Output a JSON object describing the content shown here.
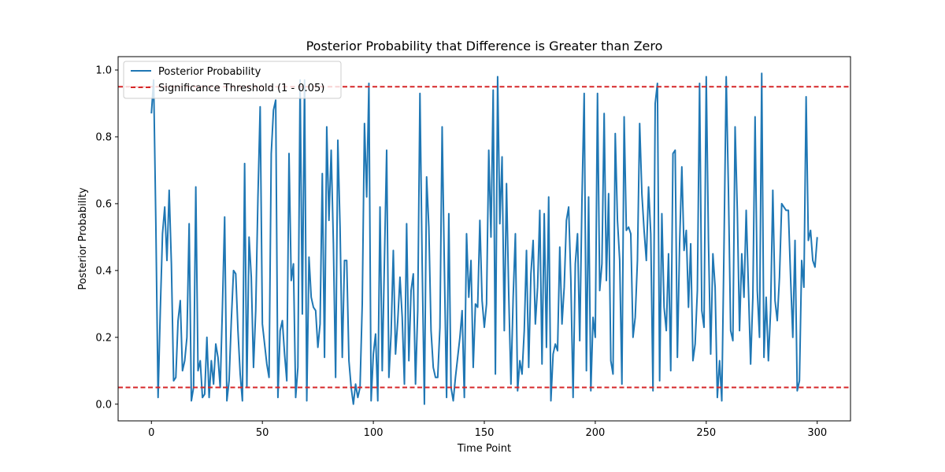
{
  "chart_data": {
    "type": "line",
    "title": "Posterior Probability that Difference is Greater than Zero",
    "xlabel": "Time Point",
    "ylabel": "Posterior Probability",
    "xlim": [
      -15,
      315
    ],
    "ylim": [
      -0.05,
      1.04
    ],
    "xticks": [
      0,
      50,
      100,
      150,
      200,
      250,
      300
    ],
    "yticks": [
      0.0,
      0.2,
      0.4,
      0.6,
      0.8,
      1.0
    ],
    "xtick_labels": [
      "0",
      "50",
      "100",
      "150",
      "200",
      "250",
      "300"
    ],
    "ytick_labels": [
      "0.0",
      "0.2",
      "0.4",
      "0.6",
      "0.8",
      "1.0"
    ],
    "grid": false,
    "legend_position": "top-left",
    "series": [
      {
        "name": "Posterior Probability",
        "color": "#1f77b4",
        "values": [
          0.87,
          0.97,
          0.54,
          0.02,
          0.28,
          0.51,
          0.59,
          0.43,
          0.64,
          0.42,
          0.07,
          0.08,
          0.25,
          0.31,
          0.1,
          0.13,
          0.2,
          0.54,
          0.01,
          0.05,
          0.65,
          0.1,
          0.13,
          0.02,
          0.03,
          0.2,
          0.02,
          0.13,
          0.06,
          0.18,
          0.14,
          0.05,
          0.29,
          0.56,
          0.01,
          0.07,
          0.25,
          0.4,
          0.39,
          0.22,
          0.09,
          0.01,
          0.72,
          0.05,
          0.5,
          0.38,
          0.11,
          0.28,
          0.62,
          0.89,
          0.24,
          0.18,
          0.12,
          0.08,
          0.75,
          0.88,
          0.91,
          0.02,
          0.22,
          0.25,
          0.15,
          0.07,
          0.75,
          0.37,
          0.42,
          0.02,
          0.11,
          0.97,
          0.27,
          0.97,
          0.01,
          0.44,
          0.32,
          0.29,
          0.28,
          0.17,
          0.24,
          0.69,
          0.14,
          0.83,
          0.55,
          0.76,
          0.48,
          0.08,
          0.79,
          0.53,
          0.14,
          0.43,
          0.43,
          0.13,
          0.05,
          0.0,
          0.06,
          0.02,
          0.05,
          0.3,
          0.84,
          0.62,
          0.96,
          0.01,
          0.15,
          0.21,
          0.01,
          0.59,
          0.1,
          0.43,
          0.76,
          0.08,
          0.21,
          0.46,
          0.15,
          0.25,
          0.38,
          0.26,
          0.06,
          0.54,
          0.13,
          0.34,
          0.39,
          0.06,
          0.28,
          0.93,
          0.42,
          0.0,
          0.68,
          0.53,
          0.22,
          0.11,
          0.08,
          0.08,
          0.23,
          0.83,
          0.41,
          0.02,
          0.57,
          0.05,
          0.01,
          0.08,
          0.14,
          0.2,
          0.28,
          0.02,
          0.51,
          0.32,
          0.43,
          0.11,
          0.3,
          0.29,
          0.55,
          0.31,
          0.23,
          0.3,
          0.76,
          0.5,
          0.94,
          0.09,
          0.98,
          0.54,
          0.74,
          0.22,
          0.66,
          0.33,
          0.06,
          0.32,
          0.51,
          0.04,
          0.13,
          0.09,
          0.22,
          0.46,
          0.11,
          0.39,
          0.49,
          0.24,
          0.35,
          0.58,
          0.12,
          0.57,
          0.17,
          0.62,
          0.01,
          0.15,
          0.18,
          0.16,
          0.47,
          0.24,
          0.35,
          0.55,
          0.59,
          0.37,
          0.02,
          0.42,
          0.51,
          0.19,
          0.61,
          0.93,
          0.1,
          0.62,
          0.04,
          0.26,
          0.2,
          0.93,
          0.34,
          0.42,
          0.87,
          0.37,
          0.63,
          0.13,
          0.09,
          0.81,
          0.55,
          0.43,
          0.06,
          0.86,
          0.52,
          0.53,
          0.51,
          0.2,
          0.26,
          0.43,
          0.84,
          0.63,
          0.52,
          0.43,
          0.65,
          0.51,
          0.04,
          0.9,
          0.96,
          0.07,
          0.57,
          0.29,
          0.22,
          0.45,
          0.1,
          0.75,
          0.76,
          0.14,
          0.48,
          0.71,
          0.46,
          0.52,
          0.29,
          0.48,
          0.13,
          0.18,
          0.34,
          0.96,
          0.28,
          0.23,
          0.98,
          0.49,
          0.15,
          0.45,
          0.35,
          0.02,
          0.13,
          0.01,
          0.47,
          0.98,
          0.64,
          0.22,
          0.19,
          0.83,
          0.58,
          0.22,
          0.45,
          0.32,
          0.58,
          0.35,
          0.12,
          0.32,
          0.86,
          0.34,
          0.2,
          0.99,
          0.14,
          0.32,
          0.13,
          0.28,
          0.64,
          0.31,
          0.25,
          0.38,
          0.6,
          0.59,
          0.58,
          0.58,
          0.38,
          0.2,
          0.49,
          0.04,
          0.07,
          0.43,
          0.35,
          0.92,
          0.49,
          0.52,
          0.43,
          0.41,
          0.5
        ]
      }
    ],
    "reference_lines": [
      {
        "name": "Significance Threshold (1 - 0.05)",
        "y": 0.95,
        "color": "#d62728",
        "style": "dashed",
        "in_legend": true
      },
      {
        "name": "",
        "y": 0.05,
        "color": "#d62728",
        "style": "dashed",
        "in_legend": false
      }
    ]
  }
}
